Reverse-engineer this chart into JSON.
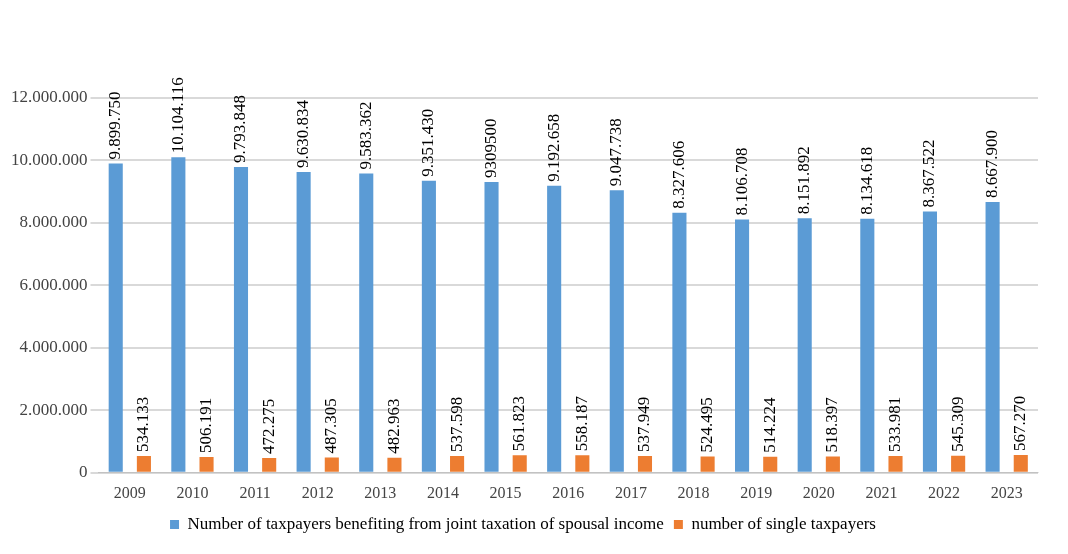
{
  "chart_data": {
    "type": "bar",
    "categories": [
      "2009",
      "2010",
      "2011",
      "2012",
      "2013",
      "2014",
      "2015",
      "2016",
      "2017",
      "2018",
      "2019",
      "2020",
      "2021",
      "2022",
      "2023"
    ],
    "series": [
      {
        "name": "Number of taxpayers benefiting from joint taxation of spousal income",
        "color": "#5b9bd5",
        "values": [
          9899750,
          10104116,
          9793848,
          9630834,
          9583362,
          9351430,
          9309500,
          9192658,
          9047738,
          8327606,
          8106708,
          8151892,
          8134618,
          8367522,
          8667900
        ],
        "value_labels": [
          "9.899.750",
          "10.104.116",
          "9.793.848",
          "9.630.834",
          "9.583.362",
          "9.351.430",
          "9309500",
          "9.192.658",
          "9.047.738",
          "8.327.606",
          "8.106.708",
          "8.151.892",
          "8.134.618",
          "8.367.522",
          "8.667.900"
        ]
      },
      {
        "name": "number of single taxpayers",
        "color": "#ed7d31",
        "values": [
          534133,
          506191,
          472275,
          487305,
          482963,
          537598,
          561823,
          558187,
          537949,
          524495,
          514224,
          518397,
          533981,
          545309,
          567270
        ],
        "value_labels": [
          "534.133",
          "506.191",
          "472.275",
          "487.305",
          "482.963",
          "537.598",
          "561.823",
          "558.187",
          "537.949",
          "524.495",
          "514.224",
          "518.397",
          "533.981",
          "545.309",
          "567.270"
        ]
      }
    ],
    "ylim": [
      0,
      12000000
    ],
    "yticks": [
      0,
      {
        "value": 2000000,
        "label": "2.000.000"
      },
      {
        "value": 4000000,
        "label": "4.000.000"
      },
      {
        "value": 6000000,
        "label": "6.000.000"
      },
      {
        "value": 8000000,
        "label": "8.000.000"
      },
      {
        "value": 10000000,
        "label": "10.000.000"
      },
      {
        "value": 12000000,
        "label": "12.000.000"
      }
    ],
    "grid": "y",
    "legend": "bottom"
  }
}
